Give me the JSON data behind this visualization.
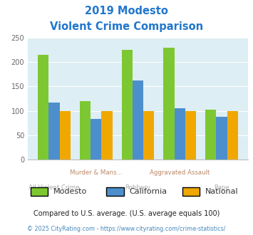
{
  "title_line1": "2019 Modesto",
  "title_line2": "Violent Crime Comparison",
  "categories": [
    "All Violent Crime",
    "Murder & Mans...",
    "Robbery",
    "Aggravated Assault",
    "Rape"
  ],
  "modesto": [
    215,
    120,
    225,
    230,
    103
  ],
  "california": [
    117,
    84,
    163,
    106,
    88
  ],
  "national": [
    100,
    100,
    100,
    100,
    100
  ],
  "color_modesto": "#7dc832",
  "color_california": "#4d8fcc",
  "color_national": "#f0a800",
  "bg_plot": "#ddeef4",
  "title_color": "#2277cc",
  "xlabel_color_lower": "#aaaaaa",
  "xlabel_color_upper": "#bb8866",
  "ylabel_max": 250,
  "ylabel_step": 50,
  "footnote1": "Compared to U.S. average. (U.S. average equals 100)",
  "footnote2": "© 2025 CityRating.com - https://www.cityrating.com/crime-statistics/",
  "footnote1_color": "#222222",
  "footnote2_color": "#4488bb",
  "legend_text_color": "#333333"
}
